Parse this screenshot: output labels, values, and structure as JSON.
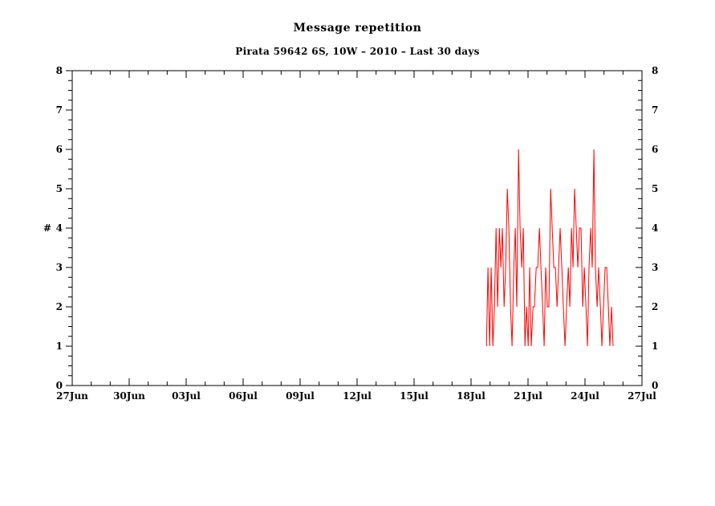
{
  "chart_data": {
    "type": "line",
    "title": "Message repetition",
    "subtitle": "Pirata 59642 6S, 10W – 2010 – Last 30 days",
    "xlabel": "",
    "ylabel": "#",
    "x_tick_labels": [
      "27Jun",
      "30Jun",
      "03Jul",
      "06Jul",
      "09Jul",
      "12Jul",
      "15Jul",
      "18Jul",
      "21Jul",
      "24Jul",
      "27Jul"
    ],
    "y_tick_labels": [
      "0",
      "1",
      "2",
      "3",
      "4",
      "5",
      "6",
      "7",
      "8"
    ],
    "x_range_days": [
      0,
      30
    ],
    "x_major_step_days": 3,
    "x_minor_step_days": 1,
    "ylim": [
      0,
      8
    ],
    "y_major_step": 1,
    "y_minor_step": 0.25,
    "grid": false,
    "legend": "none",
    "y_labels_on_both_sides": true,
    "line_color": "#ff0000",
    "axis_color": "#000000",
    "background_color": "#ffffff",
    "series": [
      {
        "name": "repetitions",
        "x_days": [
          21.81,
          21.89,
          21.98,
          22.06,
          22.15,
          22.23,
          22.32,
          22.4,
          22.49,
          22.57,
          22.65,
          22.74,
          22.82,
          22.91,
          22.99,
          23.08,
          23.16,
          23.25,
          23.33,
          23.41,
          23.5,
          23.58,
          23.67,
          23.75,
          23.84,
          23.92,
          24.01,
          24.09,
          24.17,
          24.26,
          24.34,
          24.43,
          24.51,
          24.6,
          24.68,
          24.77,
          24.85,
          24.93,
          25.02,
          25.1,
          25.19,
          25.27,
          25.36,
          25.44,
          25.53,
          25.61,
          25.69,
          25.78,
          25.86,
          25.95,
          26.03,
          26.12,
          26.2,
          26.29,
          26.37,
          26.45,
          26.54,
          26.62,
          26.71,
          26.79,
          26.88,
          26.96,
          27.05,
          27.13,
          27.21,
          27.3,
          27.38,
          27.47,
          27.55,
          27.64,
          27.72,
          27.81,
          27.89,
          27.97,
          28.06,
          28.14,
          28.23,
          28.31,
          28.4,
          28.48
        ],
        "values": [
          1,
          3,
          1,
          3,
          1,
          2,
          4,
          2,
          4,
          3,
          4,
          2,
          3,
          5,
          4,
          2,
          1,
          3,
          4,
          2,
          6,
          4,
          3,
          4,
          1,
          2,
          1,
          3,
          1,
          2,
          2,
          3,
          3,
          4,
          3,
          2,
          1,
          3,
          2,
          2,
          5,
          4,
          3,
          3,
          2,
          3,
          4,
          3,
          2,
          1,
          2,
          3,
          2,
          4,
          3,
          5,
          4,
          3,
          4,
          4,
          2,
          3,
          2,
          1,
          3,
          4,
          3,
          6,
          3,
          2,
          3,
          2,
          1,
          2,
          3,
          3,
          2,
          1,
          2,
          1
        ]
      }
    ]
  }
}
